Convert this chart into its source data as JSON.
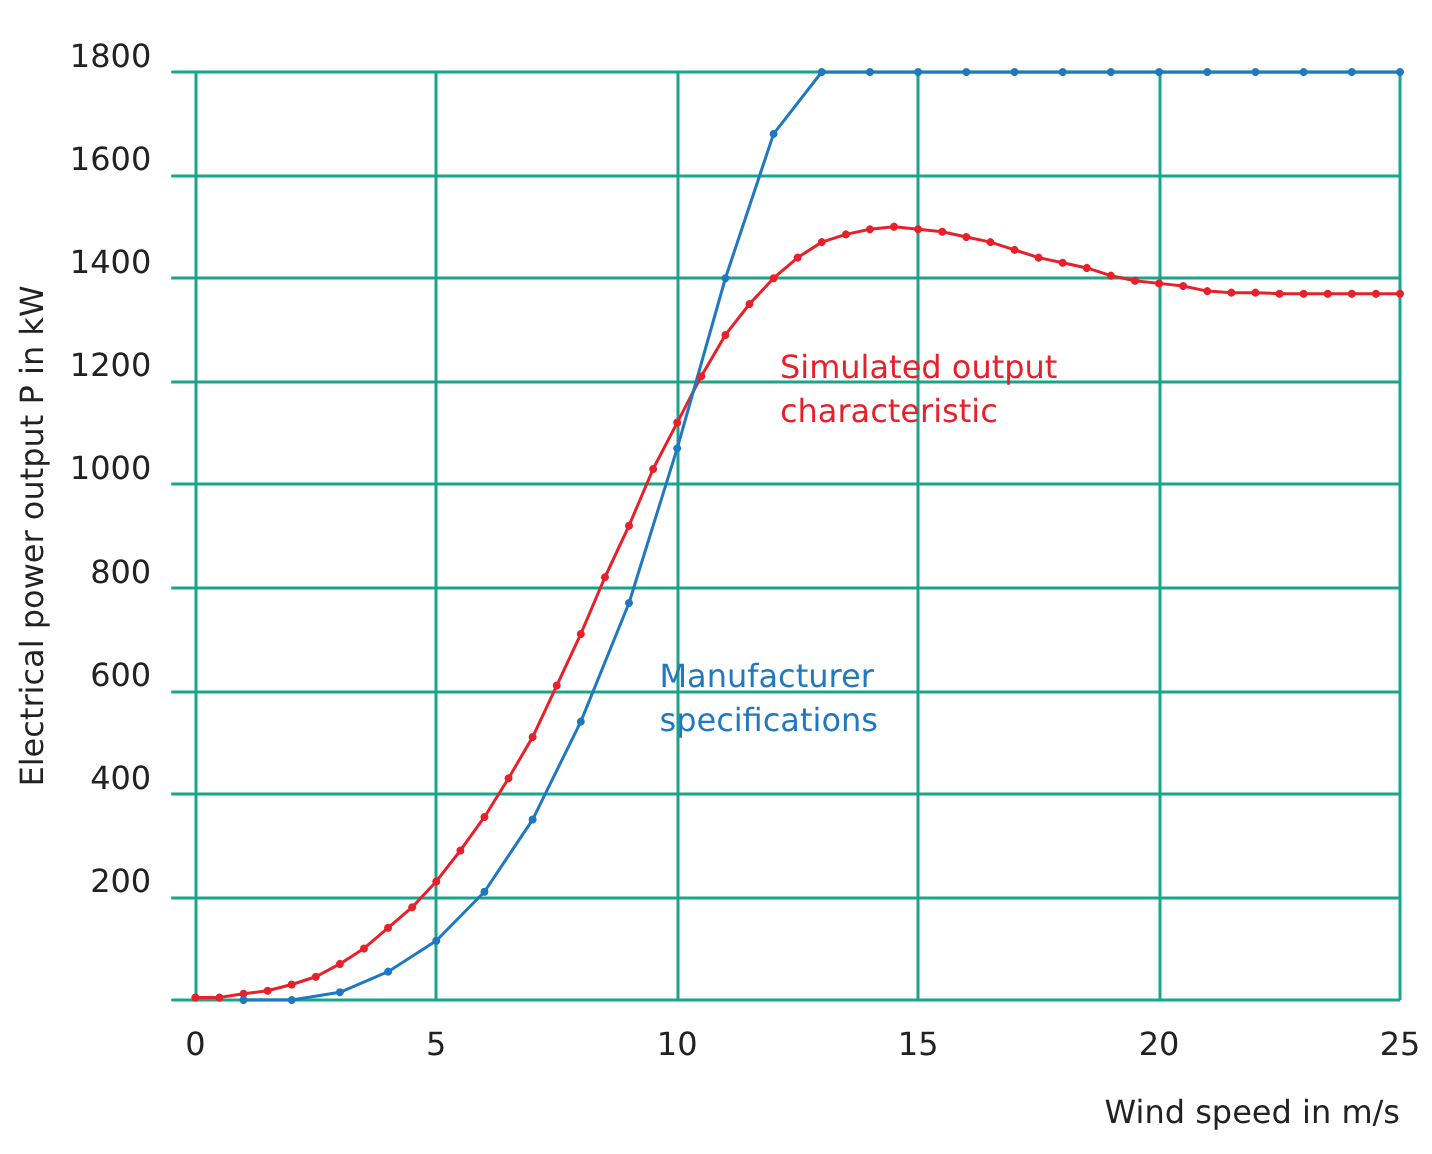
{
  "chart_data": {
    "type": "line",
    "xlabel": "Wind speed in m/s",
    "ylabel": "Electrical power output P in kW",
    "xlim": [
      -0.5,
      25
    ],
    "xticks": [
      0,
      5,
      10,
      15,
      20,
      25
    ],
    "ylim": [
      0,
      1800
    ],
    "yticks": [
      {
        "value": 0,
        "label": null
      },
      200,
      400,
      600,
      800,
      1000,
      1200,
      1400,
      1600,
      1800
    ],
    "grid": true,
    "marker": "circle",
    "line_style": "solid",
    "series": [
      {
        "color": "#e8202a",
        "x": [
          0,
          0.5,
          1,
          1.5,
          2,
          2.5,
          3,
          3.5,
          4,
          4.5,
          5,
          5.5,
          6,
          6.5,
          7,
          7.5,
          8,
          8.5,
          9,
          9.5,
          10,
          10.5,
          11,
          11.5,
          12,
          12.5,
          13,
          13.5,
          14,
          14.5,
          15,
          15.5,
          16,
          16.5,
          17,
          17.5,
          18,
          18.5,
          19,
          19.5,
          20,
          20.5,
          21,
          21.5,
          22,
          22.5,
          23,
          23.5,
          24,
          24.5,
          25
        ],
        "values": [
          5,
          5,
          12,
          18,
          30,
          45,
          70,
          100,
          140,
          180,
          230,
          290,
          355,
          430,
          510,
          610,
          710,
          820,
          920,
          1030,
          1120,
          1210,
          1290,
          1350,
          1400,
          1440,
          1470,
          1485,
          1495,
          1500,
          1495,
          1490,
          1480,
          1470,
          1455,
          1440,
          1430,
          1420,
          1405,
          1395,
          1390,
          1385,
          1375,
          1372,
          1372,
          1370,
          1370,
          1370,
          1370,
          1370,
          1370
        ]
      },
      {
        "color": "#1f78c0",
        "x": [
          1,
          2,
          3,
          4,
          5,
          6,
          7,
          8,
          9,
          10,
          11,
          12,
          13,
          14,
          15,
          16,
          17,
          18,
          19,
          20,
          21,
          22,
          23,
          24,
          25
        ],
        "values": [
          0,
          0,
          15,
          55,
          115,
          210,
          350,
          540,
          770,
          1070,
          1400,
          1680,
          1800,
          1800,
          1800,
          1800,
          1800,
          1800,
          1800,
          1800,
          1800,
          1800,
          1800,
          1800,
          1800
        ]
      }
    ],
    "annotations": [
      "Simulated output characteristic",
      "Manufacturer specifications"
    ]
  }
}
